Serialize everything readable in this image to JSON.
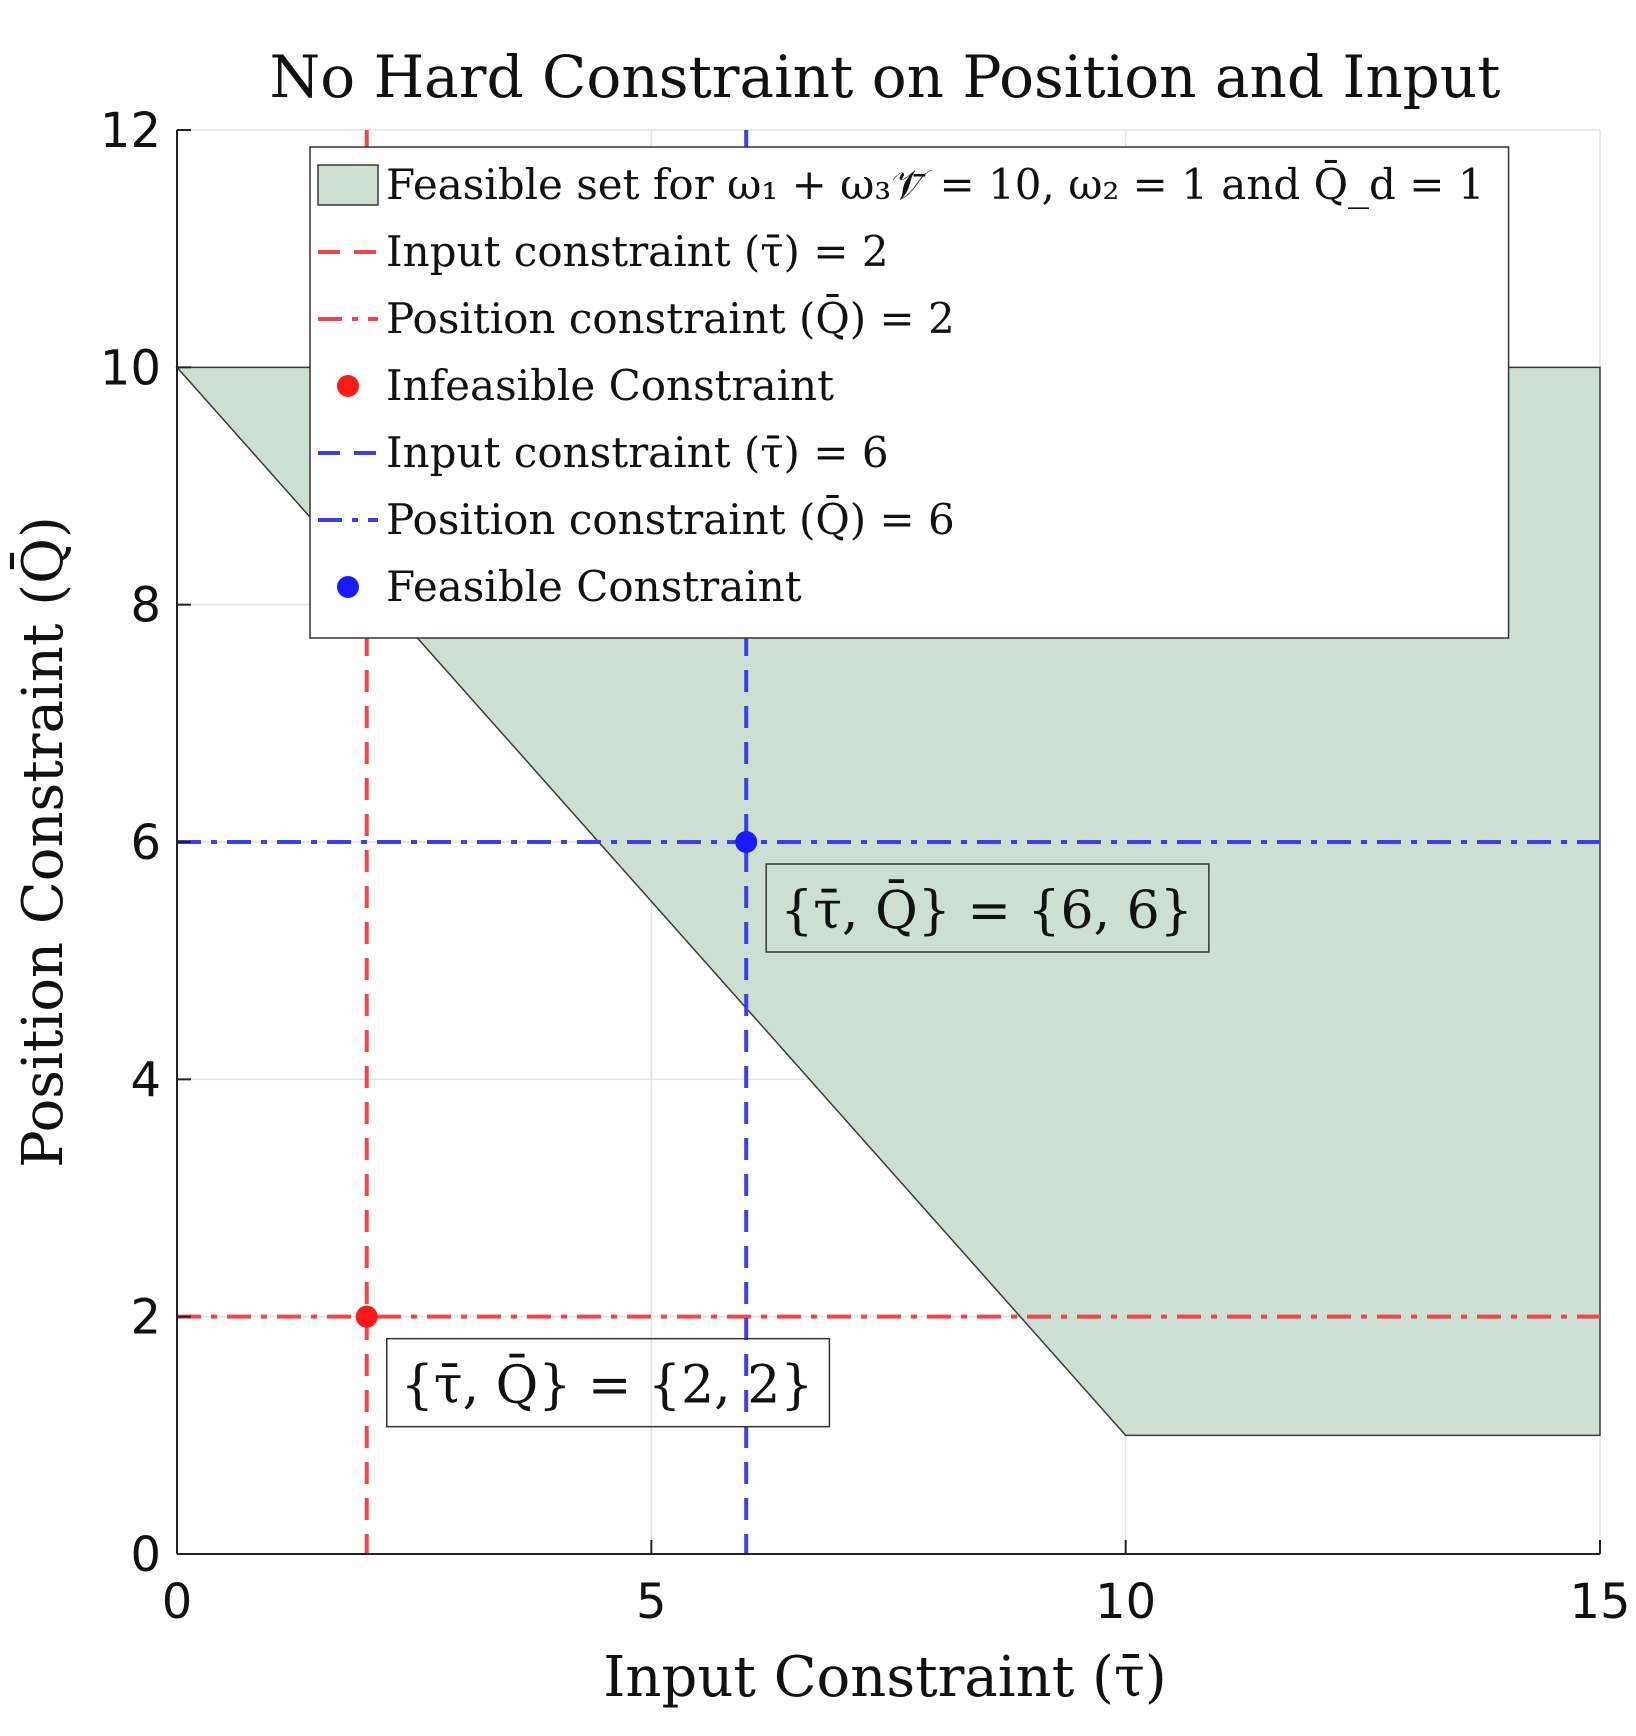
{
  "chart_data": {
    "type": "area",
    "title": "No Hard Constraint on Position and Input",
    "xlabel": "Input Constraint (τ̄)",
    "ylabel": "Position Constraint (Q̄)",
    "xlim": [
      0,
      15
    ],
    "ylim": [
      0,
      12
    ],
    "xticks": [
      0,
      5,
      10,
      15
    ],
    "yticks": [
      0,
      2,
      4,
      6,
      8,
      10,
      12
    ],
    "grid": true,
    "legend_position": "top-right",
    "feasible_region": {
      "name": "Feasible set for ω₁ + ω₃𝒱̄ = 10, ω₂ = 1 and Q̄_d = 1",
      "color": "#cddfd2",
      "boundary": [
        [
          0,
          10
        ],
        [
          10,
          1
        ],
        [
          15,
          1
        ],
        [
          15,
          10
        ]
      ]
    },
    "series": [
      {
        "name": "Input constraint (τ̄) = 2",
        "kind": "vline",
        "x": 2,
        "color": "#f0464b",
        "dash": "dashed"
      },
      {
        "name": "Position constraint (Q̄) = 2",
        "kind": "hline",
        "y": 2,
        "color": "#f0464b",
        "dash": "dashdot"
      },
      {
        "name": "Infeasible Constraint",
        "kind": "point",
        "x": 2,
        "y": 2,
        "color": "#ff1a1a"
      },
      {
        "name": "Input constraint (τ̄) = 6",
        "kind": "vline",
        "x": 6,
        "color": "#3c3cf0",
        "dash": "dashed"
      },
      {
        "name": "Position constraint (Q̄) = 6",
        "kind": "hline",
        "y": 6,
        "color": "#3c3cf0",
        "dash": "dashdot"
      },
      {
        "name": "Feasible Constraint",
        "kind": "point",
        "x": 6,
        "y": 6,
        "color": "#1a1aff"
      }
    ],
    "annotations": [
      {
        "text": "{τ̄, Q̄} = {6, 6}",
        "x": 6,
        "y": 6
      },
      {
        "text": "{τ̄, Q̄} = {2, 2}",
        "x": 2,
        "y": 2
      }
    ]
  }
}
